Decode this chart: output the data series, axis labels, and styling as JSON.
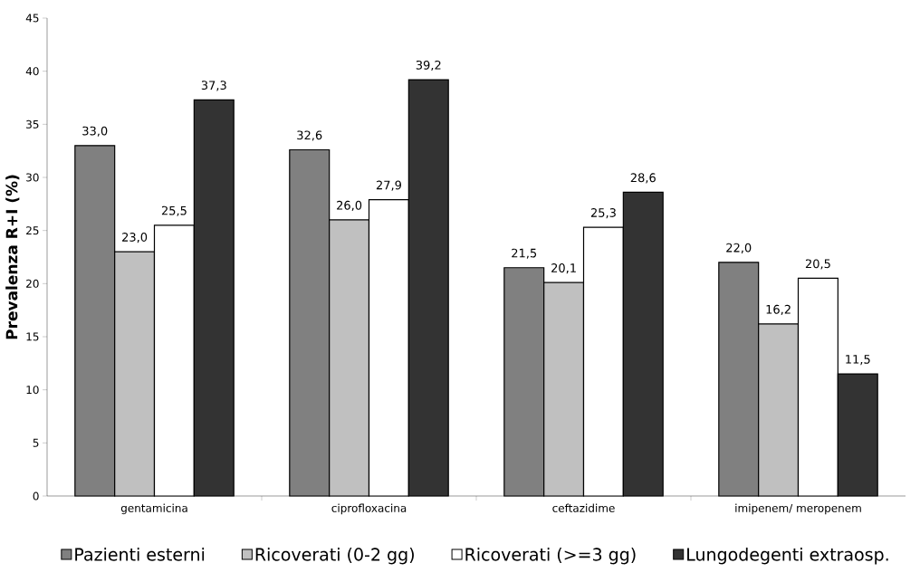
{
  "chart_data": {
    "type": "bar",
    "ylabel": "Prevalenza R+I (%)",
    "categories": [
      "gentamicina",
      "ciprofloxacina",
      "ceftazidime",
      "imipenem/ meropenem"
    ],
    "series": [
      {
        "name": "Pazienti esterni",
        "color": "#808080",
        "values": [
          33.0,
          32.6,
          21.5,
          22.0
        ],
        "value_labels": [
          "33,0",
          "32,6",
          "21,5",
          "22,0"
        ]
      },
      {
        "name": "Ricoverati (0-2 gg)",
        "color": "#c0c0c0",
        "values": [
          23.0,
          26.0,
          20.1,
          16.2
        ],
        "value_labels": [
          "23,0",
          "26,0",
          "20,1",
          "16,2"
        ]
      },
      {
        "name": "Ricoverati (>=3 gg)",
        "color": "#ffffff",
        "values": [
          25.5,
          27.9,
          25.3,
          20.5
        ],
        "value_labels": [
          "25,5",
          "27,9",
          "25,3",
          "20,5"
        ]
      },
      {
        "name": "Lungodegenti extraosp.",
        "color": "#333333",
        "values": [
          37.3,
          39.2,
          28.6,
          11.5
        ],
        "value_labels": [
          "37,3",
          "39,2",
          "28,6",
          "11,5"
        ]
      }
    ],
    "ylim": [
      0,
      45
    ],
    "yticks": [
      0,
      5,
      10,
      15,
      20,
      25,
      30,
      35,
      40,
      45
    ],
    "grid": false,
    "legend": "bottom"
  }
}
